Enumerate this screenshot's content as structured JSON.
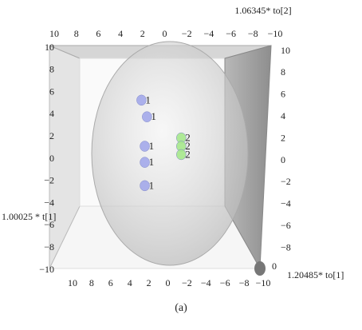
{
  "chart_data": {
    "type": "scatter3d",
    "x_label": "1.06345* to[2]",
    "y_label": "1.00025 * t[1]",
    "z_label": "1.20485* to[1]",
    "caption": "(a)",
    "xlim": [
      10,
      -10
    ],
    "xticks": [
      10,
      8,
      6,
      4,
      2,
      0,
      {
        "value": -2,
        "label": "−2"
      },
      {
        "value": -4,
        "label": "−4"
      },
      {
        "value": -6,
        "label": "−6"
      },
      {
        "value": -8,
        "label": "−8"
      },
      {
        "value": -10,
        "label": "−10"
      }
    ],
    "ylim": [
      -10,
      10
    ],
    "yticks": [
      10,
      8,
      6,
      4,
      2,
      0,
      {
        "value": -2,
        "label": "−2"
      },
      {
        "value": -4,
        "label": "−4"
      },
      {
        "value": -6,
        "label": "−6"
      },
      {
        "value": -8,
        "label": "−8"
      },
      {
        "value": -10,
        "label": "−10"
      }
    ],
    "y2lim": [
      -10,
      10
    ],
    "y2ticks": [
      10,
      8,
      6,
      4,
      2,
      0,
      {
        "value": -2,
        "label": "−2"
      },
      {
        "value": -4,
        "label": "−4"
      },
      {
        "value": -6,
        "label": "−6"
      },
      {
        "value": -8,
        "label": "−8"
      }
    ],
    "zticks": [
      0
    ],
    "series": [
      {
        "name": "1",
        "color": "#a3a9ea",
        "x": [
          2.1,
          1.6,
          1.8,
          1.8,
          1.8
        ],
        "values": [
          5.3,
          3.8,
          1.15,
          -0.3,
          -2.4
        ]
      },
      {
        "name": "2",
        "color": "#a6e88c",
        "x": [
          -1.5,
          -1.5,
          -1.5
        ],
        "values": [
          1.9,
          1.15,
          0.4
        ]
      }
    ]
  }
}
